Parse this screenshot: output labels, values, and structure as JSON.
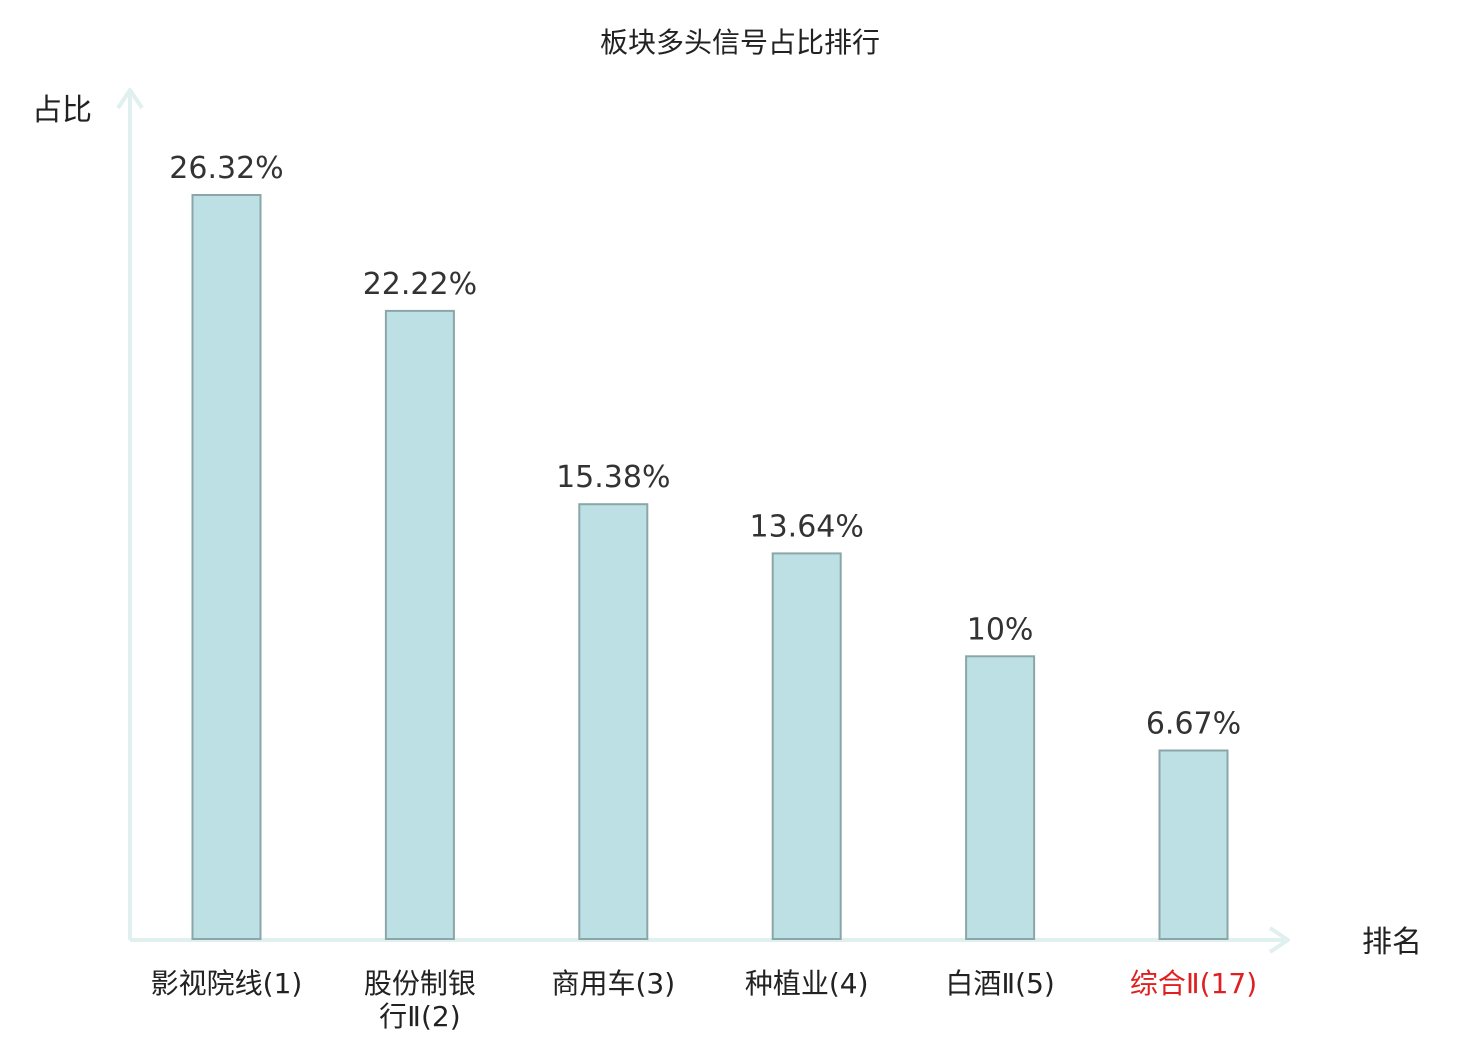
{
  "chart_data": {
    "type": "bar",
    "title": "板块多头信号占比排行",
    "xlabel": "排名",
    "ylabel": "占比",
    "categories": [
      [
        "影视院线(1)"
      ],
      [
        "股份制银",
        "行Ⅱ(2)"
      ],
      [
        "商用车(3)"
      ],
      [
        "种植业(4)"
      ],
      [
        "白酒Ⅱ(5)"
      ],
      [
        "综合Ⅱ(17)"
      ]
    ],
    "values": [
      26.32,
      22.22,
      15.38,
      13.64,
      10,
      6.67
    ],
    "value_labels": [
      "26.32%",
      "22.22%",
      "15.38%",
      "13.64%",
      "10%",
      "6.67%"
    ],
    "highlight_index": 5,
    "ylim": [
      0,
      30
    ],
    "grid": false,
    "legend": "none",
    "colors": {
      "bar_fill": "#bce0e3",
      "bar_stroke": "#8aa6a8",
      "axis": "#dff0ee",
      "text": "#222222",
      "value_text": "#333333",
      "highlight_text": "#e02020"
    }
  }
}
